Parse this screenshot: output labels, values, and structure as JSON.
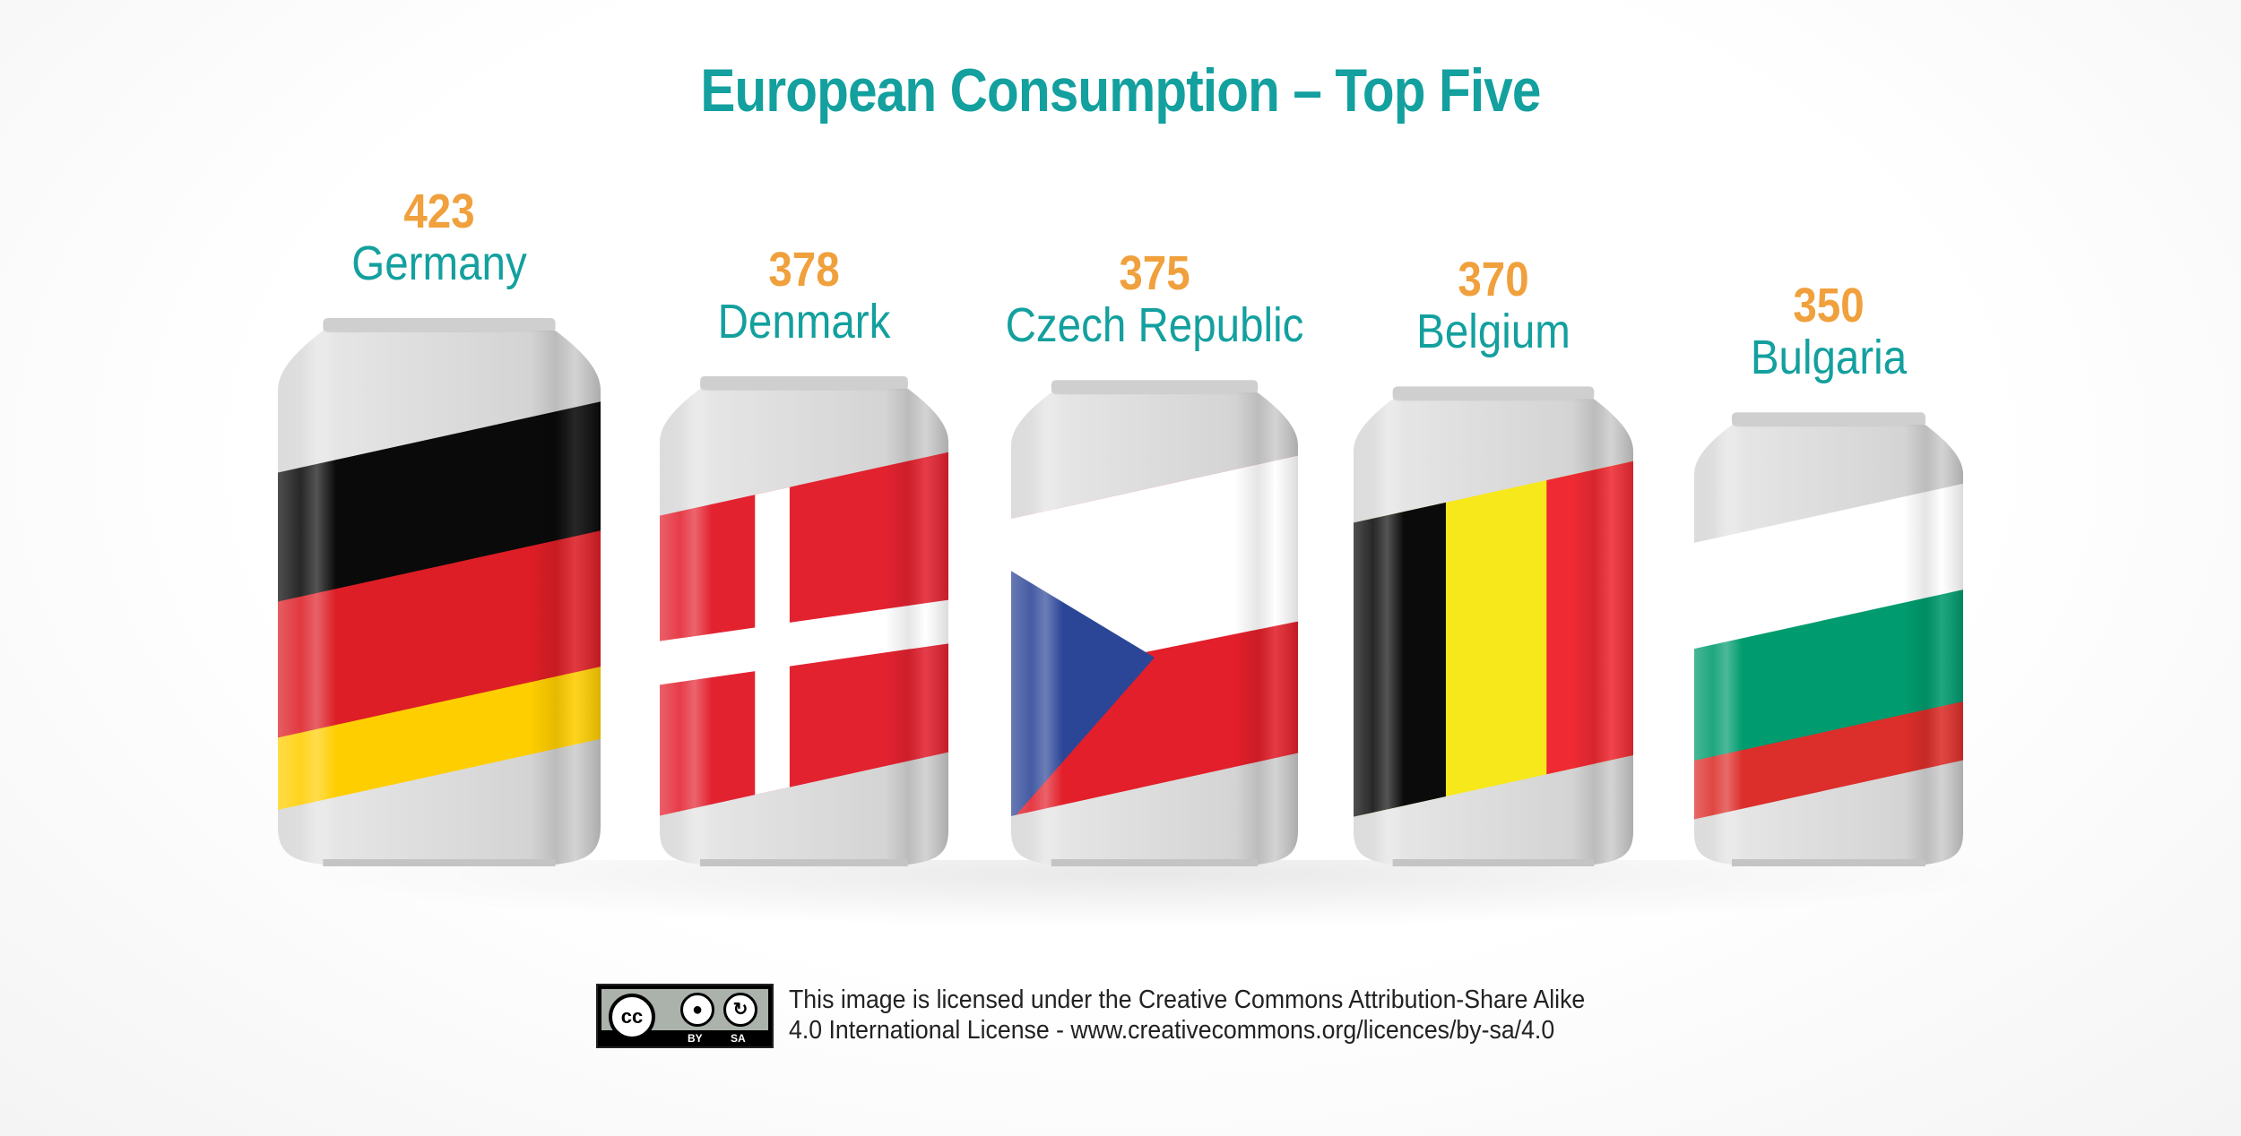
{
  "chart_data": {
    "type": "bar",
    "title": "European Consumption – Top Five",
    "categories": [
      "Germany",
      "Denmark",
      "Czech Republic",
      "Belgium",
      "Bulgaria"
    ],
    "values": [
      423,
      378,
      375,
      370,
      350
    ],
    "value_labels": [
      "423",
      "378",
      "375",
      "370",
      "350"
    ],
    "xlabel": "",
    "ylabel": "",
    "grid": false,
    "legend": "none",
    "mark": "beverage can decorated with each country's flag",
    "flag_colors": {
      "Germany": [
        "#0a0a0a",
        "#dd1e26",
        "#ffce00"
      ],
      "Denmark": [
        "#e32230",
        "#ffffff"
      ],
      "Czech Republic": [
        "#ffffff",
        "#e21f2a",
        "#2c4697"
      ],
      "Belgium": [
        "#0b0b0b",
        "#f7e81c",
        "#ef2a33"
      ],
      "Bulgaria": [
        "#ffffff",
        "#009b6e",
        "#dc2e2a"
      ]
    }
  },
  "license": {
    "badge": {
      "cc": "cc",
      "by": "BY",
      "sa": "SA",
      "by_icon": "person-icon",
      "sa_icon": "share-alike-icon"
    },
    "line1": "This image is licensed under the Creative Commons Attribution-Share Alike",
    "line2": "4.0 International License - www.creativecommons.org/licences/by-sa/4.0"
  },
  "colors": {
    "title": "#13a09e",
    "value": "#f0a03c",
    "label": "#13a09e",
    "can_body": "#d5d5d5"
  }
}
